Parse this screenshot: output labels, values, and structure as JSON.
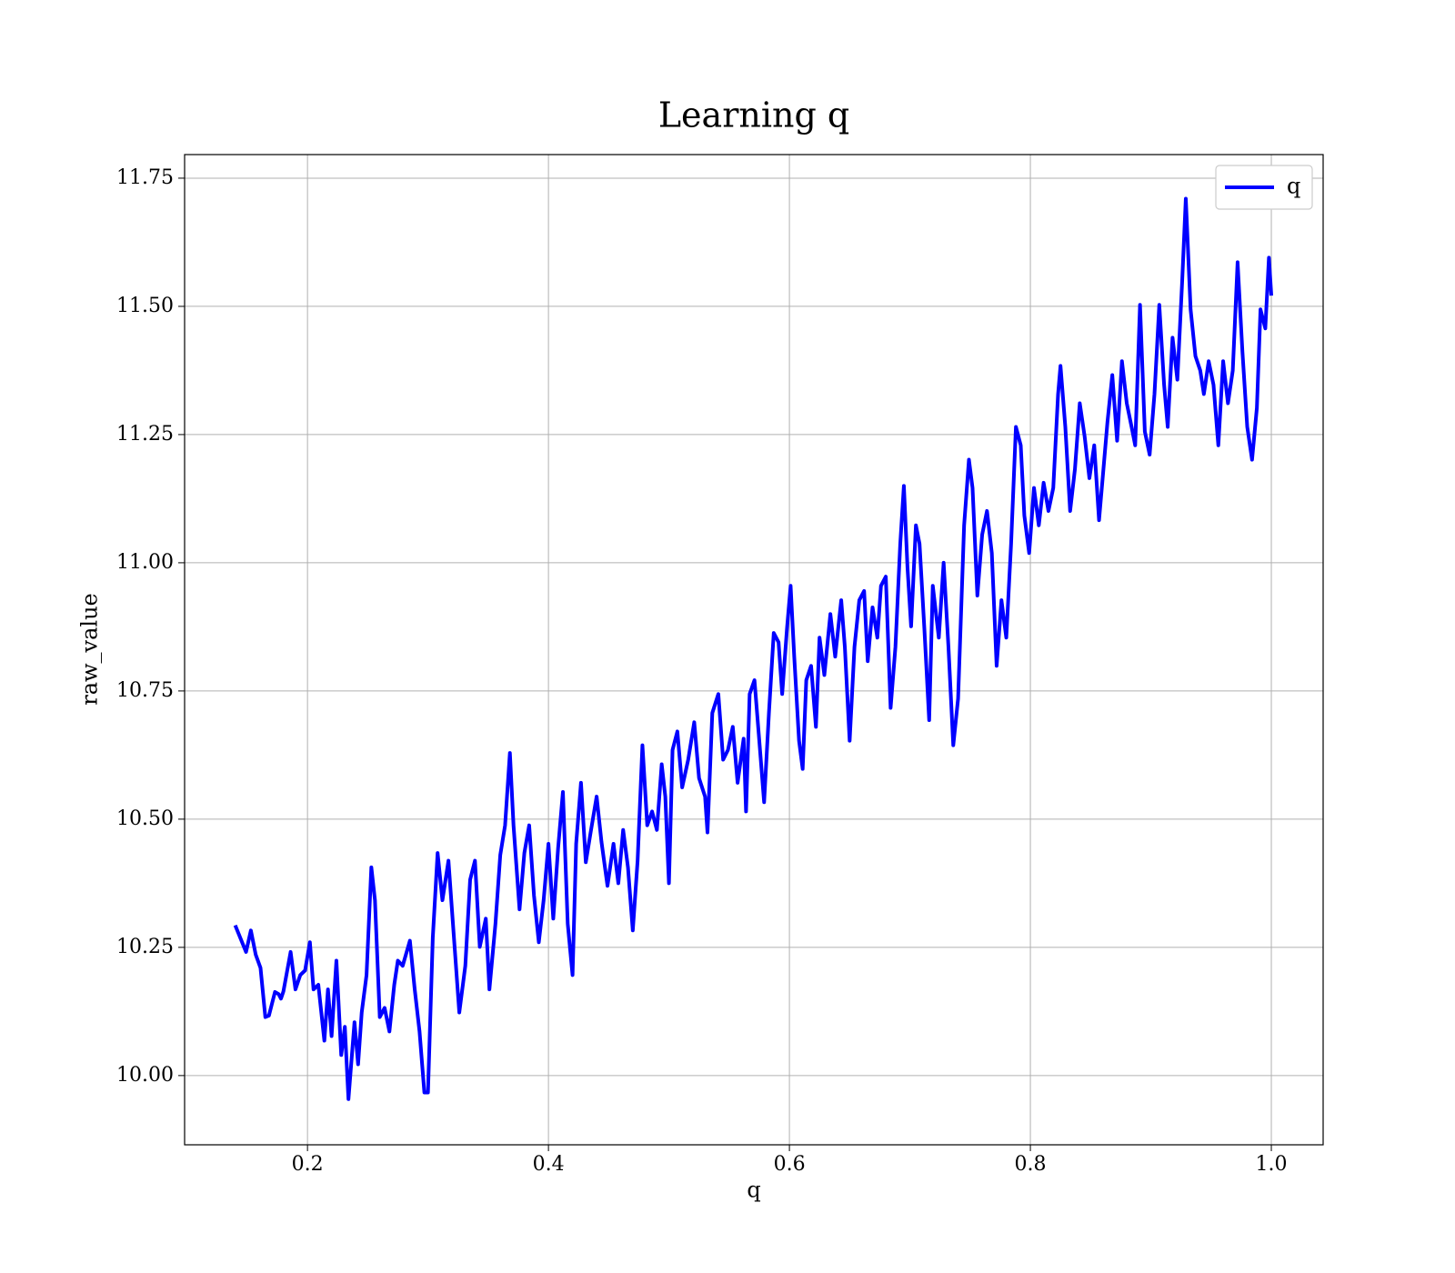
{
  "chart_data": {
    "type": "line",
    "title": "Learning q",
    "xlabel": "q",
    "ylabel": "raw_value",
    "xlim": [
      0.098,
      1.043
    ],
    "ylim": [
      9.865,
      11.796
    ],
    "xticks": [
      0.2,
      0.4,
      0.6,
      0.8,
      {
        "value": 1,
        "label": "1.0"
      }
    ],
    "yticks": [
      {
        "value": 10,
        "label": "10.00"
      },
      10.25,
      {
        "value": 10.5,
        "label": "10.50"
      },
      10.75,
      {
        "value": 11,
        "label": "11.00"
      },
      11.25,
      {
        "value": 11.5,
        "label": "11.50"
      },
      11.75
    ],
    "grid": true,
    "legend": "upper right",
    "x": [
      0.14,
      0.149,
      0.153,
      0.157,
      0.161,
      0.165,
      0.168,
      0.173,
      0.176,
      0.178,
      0.18,
      0.186,
      0.19,
      0.194,
      0.198,
      0.202,
      0.205,
      0.209,
      0.214,
      0.217,
      0.22,
      0.224,
      0.228,
      0.231,
      0.234,
      0.239,
      0.242,
      0.245,
      0.249,
      0.253,
      0.256,
      0.26,
      0.264,
      0.268,
      0.272,
      0.275,
      0.279,
      0.285,
      0.289,
      0.293,
      0.297,
      0.3,
      0.304,
      0.308,
      0.312,
      0.317,
      0.321,
      0.326,
      0.331,
      0.335,
      0.339,
      0.343,
      0.348,
      0.351,
      0.356,
      0.36,
      0.364,
      0.368,
      0.371,
      0.376,
      0.38,
      0.384,
      0.388,
      0.392,
      0.396,
      0.4,
      0.404,
      0.408,
      0.412,
      0.416,
      0.42,
      0.423,
      0.427,
      0.431,
      0.435,
      0.44,
      0.444,
      0.449,
      0.454,
      0.458,
      0.462,
      0.466,
      0.47,
      0.474,
      0.478,
      0.482,
      0.486,
      0.49,
      0.494,
      0.497,
      0.5,
      0.503,
      0.507,
      0.511,
      0.516,
      0.521,
      0.525,
      0.53,
      0.532,
      0.536,
      0.541,
      0.545,
      0.549,
      0.553,
      0.557,
      0.562,
      0.564,
      0.567,
      0.571,
      0.575,
      0.579,
      0.583,
      0.587,
      0.591,
      0.594,
      0.598,
      0.601,
      0.604,
      0.608,
      0.611,
      0.614,
      0.618,
      0.622,
      0.625,
      0.629,
      0.634,
      0.638,
      0.643,
      0.646,
      0.65,
      0.654,
      0.658,
      0.662,
      0.665,
      0.669,
      0.673,
      0.676,
      0.68,
      0.684,
      0.688,
      0.692,
      0.695,
      0.698,
      0.701,
      0.705,
      0.708,
      0.712,
      0.716,
      0.719,
      0.724,
      0.728,
      0.732,
      0.736,
      0.74,
      0.745,
      0.749,
      0.752,
      0.756,
      0.76,
      0.764,
      0.768,
      0.772,
      0.776,
      0.78,
      0.784,
      0.788,
      0.792,
      0.795,
      0.799,
      0.803,
      0.807,
      0.811,
      0.815,
      0.819,
      0.823,
      0.825,
      0.829,
      0.833,
      0.837,
      0.841,
      0.845,
      0.849,
      0.853,
      0.857,
      0.86,
      0.864,
      0.868,
      0.872,
      0.876,
      0.88,
      0.884,
      0.887,
      0.891,
      0.895,
      0.899,
      0.903,
      0.907,
      0.911,
      0.914,
      0.918,
      0.922,
      0.926,
      0.929,
      0.933,
      0.937,
      0.941,
      0.944,
      0.948,
      0.952,
      0.956,
      0.96,
      0.964,
      0.968,
      0.972,
      0.976,
      0.98,
      0.984,
      0.988,
      0.991,
      0.995,
      0.998,
      1.0
    ],
    "series": [
      {
        "name": "q",
        "color": "#0000ff",
        "values": [
          10.293,
          10.241,
          10.283,
          10.236,
          10.21,
          10.114,
          10.117,
          10.163,
          10.159,
          10.15,
          10.164,
          10.241,
          10.168,
          10.196,
          10.205,
          10.26,
          10.168,
          10.177,
          10.068,
          10.168,
          10.077,
          10.224,
          10.04,
          10.095,
          9.954,
          10.104,
          10.022,
          10.123,
          10.196,
          10.406,
          10.342,
          10.114,
          10.132,
          10.086,
          10.177,
          10.224,
          10.214,
          10.263,
          10.168,
          10.086,
          9.967,
          9.967,
          10.269,
          10.434,
          10.342,
          10.419,
          10.287,
          10.123,
          10.214,
          10.382,
          10.419,
          10.251,
          10.306,
          10.168,
          10.296,
          10.43,
          10.488,
          10.629,
          10.488,
          10.324,
          10.434,
          10.488,
          10.351,
          10.26,
          10.342,
          10.452,
          10.306,
          10.443,
          10.553,
          10.296,
          10.196,
          10.452,
          10.571,
          10.416,
          10.474,
          10.544,
          10.456,
          10.37,
          10.452,
          10.375,
          10.479,
          10.406,
          10.283,
          10.419,
          10.644,
          10.488,
          10.515,
          10.479,
          10.607,
          10.544,
          10.375,
          10.635,
          10.671,
          10.562,
          10.616,
          10.689,
          10.58,
          10.544,
          10.474,
          10.707,
          10.744,
          10.616,
          10.635,
          10.68,
          10.571,
          10.657,
          10.515,
          10.744,
          10.771,
          10.653,
          10.533,
          10.707,
          10.863,
          10.845,
          10.744,
          10.872,
          10.955,
          10.817,
          10.653,
          10.598,
          10.771,
          10.799,
          10.68,
          10.854,
          10.781,
          10.9,
          10.817,
          10.927,
          10.836,
          10.653,
          10.836,
          10.927,
          10.945,
          10.808,
          10.913,
          10.854,
          10.955,
          10.973,
          10.717,
          10.836,
          11.037,
          11.15,
          10.991,
          10.876,
          11.073,
          11.037,
          10.872,
          10.693,
          10.955,
          10.854,
          11.0,
          10.836,
          10.644,
          10.735,
          11.073,
          11.201,
          11.146,
          10.936,
          11.055,
          11.101,
          11.019,
          10.799,
          10.927,
          10.854,
          11.037,
          11.265,
          11.229,
          11.092,
          11.019,
          11.146,
          11.073,
          11.156,
          11.101,
          11.146,
          11.329,
          11.384,
          11.265,
          11.101,
          11.183,
          11.311,
          11.247,
          11.165,
          11.229,
          11.083,
          11.165,
          11.275,
          11.366,
          11.238,
          11.393,
          11.311,
          11.265,
          11.229,
          11.503,
          11.256,
          11.211,
          11.329,
          11.503,
          11.347,
          11.265,
          11.439,
          11.357,
          11.549,
          11.71,
          11.494,
          11.403,
          11.375,
          11.329,
          11.393,
          11.347,
          11.229,
          11.393,
          11.311,
          11.375,
          11.586,
          11.412,
          11.265,
          11.201,
          11.302,
          11.494,
          11.457,
          11.595,
          11.521
        ]
      }
    ]
  }
}
